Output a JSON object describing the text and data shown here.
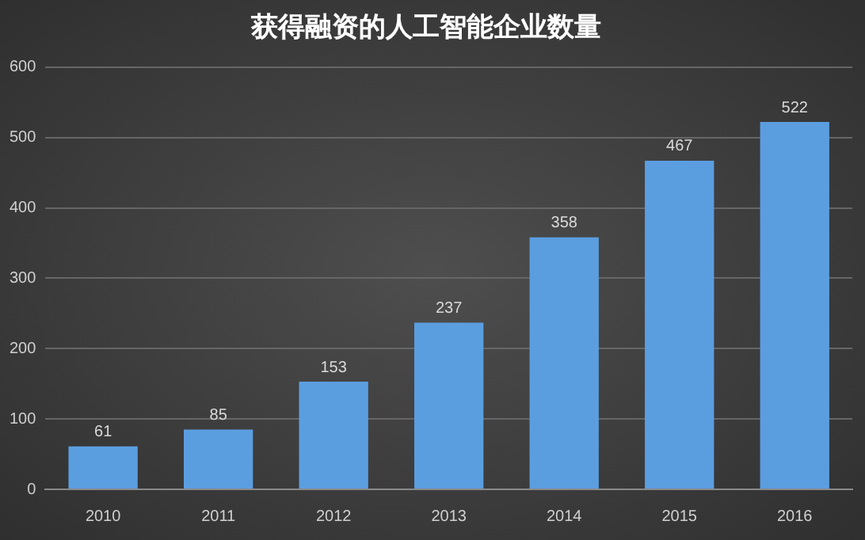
{
  "chart_data": {
    "type": "bar",
    "title": "获得融资的人工智能企业数量",
    "categories": [
      "2010",
      "2011",
      "2012",
      "2013",
      "2014",
      "2015",
      "2016"
    ],
    "values": [
      61,
      85,
      153,
      237,
      358,
      467,
      522
    ],
    "color": "#5b9ee0",
    "ylim": [
      0,
      600
    ],
    "yticks": [
      0,
      100,
      200,
      300,
      400,
      500,
      600
    ],
    "grid": "y",
    "data_labels": true
  }
}
